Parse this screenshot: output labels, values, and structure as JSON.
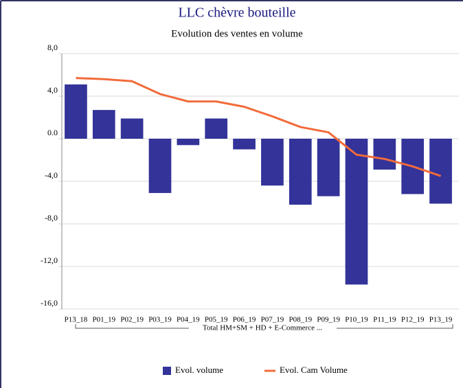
{
  "chart_data": {
    "type": "bar_line",
    "title": "LLC chèvre bouteille",
    "subtitle": "Evolution des ventes en volume",
    "categories": [
      "P13_18",
      "P01_19",
      "P02_19",
      "P03_19",
      "P04_19",
      "P05_19",
      "P06_19",
      "P07_19",
      "P08_19",
      "P09_19",
      "P10_19",
      "P11_19",
      "P12_19",
      "P13_19"
    ],
    "group_label": "Total HM+SM + HD + E-Commerce ...",
    "series": [
      {
        "name": "Evol. volume",
        "color": "#333399",
        "kind": "bar",
        "values": [
          5.1,
          2.7,
          1.9,
          -5.1,
          -0.6,
          1.9,
          -1.0,
          -4.4,
          -6.2,
          -5.4,
          -13.7,
          -2.9,
          -5.2,
          -6.1
        ]
      },
      {
        "name": "Evol. Cam Volume",
        "color": "#f26b3a",
        "kind": "line",
        "values": [
          5.7,
          5.6,
          5.4,
          4.2,
          3.5,
          3.5,
          3.0,
          2.1,
          1.1,
          0.6,
          -1.5,
          -1.9,
          -2.6,
          -3.5
        ]
      }
    ],
    "ylim": [
      -16,
      8
    ],
    "yticks": [
      {
        "value": -16,
        "label": "-16,0"
      },
      {
        "value": -12,
        "label": "-12,0"
      },
      {
        "value": -8,
        "label": "-8,0"
      },
      {
        "value": -4,
        "label": "-4,0"
      },
      {
        "value": 0,
        "label": "0.0"
      },
      {
        "value": 4,
        "label": "4,0"
      },
      {
        "value": 8,
        "label": "8,0"
      }
    ],
    "grid": true
  }
}
